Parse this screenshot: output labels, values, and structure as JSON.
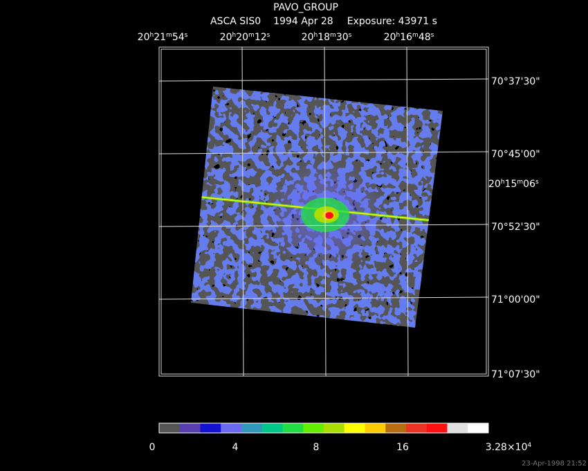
{
  "title": "PAVO_GROUP",
  "subtitle": {
    "instrument": "ASCA SIS0",
    "date": "1994 Apr 28",
    "exposure": "Exposure: 43971 s"
  },
  "ra_labels": [
    [
      "20",
      "h",
      "21",
      "m",
      "54",
      "s"
    ],
    [
      "20",
      "h",
      "20",
      "m",
      "12",
      "s"
    ],
    [
      "20",
      "h",
      "18",
      "m",
      "30",
      "s"
    ],
    [
      "20",
      "h",
      "16",
      "m",
      "48",
      "s"
    ]
  ],
  "ra_label_right": [
    "20",
    "h",
    "15",
    "m",
    "06",
    "s"
  ],
  "dec_labels": [
    "70°37'30\"",
    "70°45'00\"",
    "70°52'30\"",
    "71°00'00\"",
    "71°07'30\""
  ],
  "colorbar": {
    "colors": [
      "#555555",
      "#5a3fb0",
      "#1414d0",
      "#6a6af0",
      "#3399bb",
      "#00c888",
      "#22dd44",
      "#66ee00",
      "#aadd00",
      "#ffff00",
      "#ffcc00",
      "#b86e10",
      "#ee3322",
      "#ff1111",
      "#e0e0e0",
      "#ffffff"
    ],
    "ticks": [
      "0",
      "4",
      "8",
      "16"
    ],
    "max_label": [
      "3.28×10",
      "4"
    ]
  },
  "timestamp": "23-Apr-1998 21:52"
}
